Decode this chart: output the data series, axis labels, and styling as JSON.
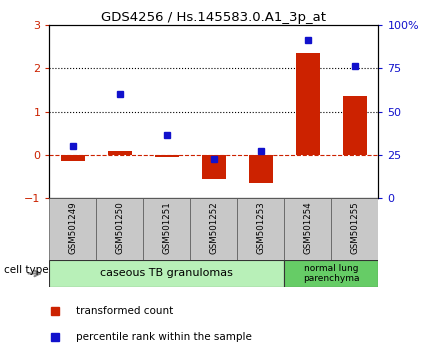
{
  "title": "GDS4256 / Hs.145583.0.A1_3p_at",
  "samples": [
    "GSM501249",
    "GSM501250",
    "GSM501251",
    "GSM501252",
    "GSM501253",
    "GSM501254",
    "GSM501255"
  ],
  "transformed_count": [
    -0.15,
    0.1,
    -0.05,
    -0.55,
    -0.65,
    2.35,
    1.35
  ],
  "percentile_rank_left": [
    0.2,
    1.4,
    0.45,
    -0.1,
    0.1,
    2.65,
    2.05
  ],
  "ylim_left": [
    -1,
    3
  ],
  "ylim_right": [
    0,
    100
  ],
  "yticks_left": [
    -1,
    0,
    1,
    2,
    3
  ],
  "yticks_right": [
    0,
    25,
    50,
    75,
    100
  ],
  "ytick_labels_right": [
    "0",
    "25",
    "50",
    "75",
    "100%"
  ],
  "bar_color": "#cc2200",
  "square_color": "#1111cc",
  "zero_line_color": "#cc2200",
  "dotted_line_color": "#000000",
  "cell_types": [
    {
      "label": "caseous TB granulomas",
      "n_samples": 5,
      "color": "#b8f0b8"
    },
    {
      "label": "normal lung\nparenchyma",
      "n_samples": 2,
      "color": "#66cc66"
    }
  ],
  "sample_box_color": "#c8c8c8",
  "legend_red_label": "transformed count",
  "legend_blue_label": "percentile rank within the sample",
  "cell_type_label": "cell type"
}
